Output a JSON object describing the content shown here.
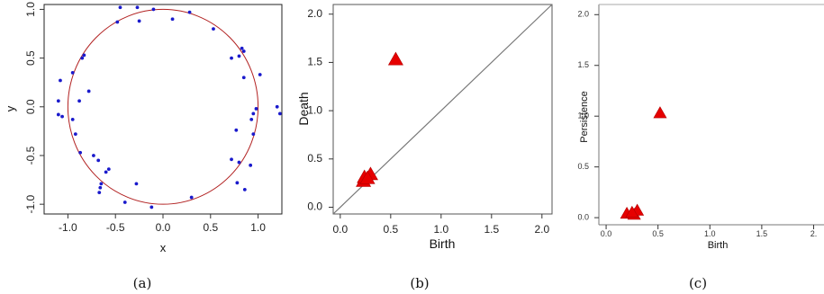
{
  "chart_data": [
    {
      "id": "a",
      "type": "scatter",
      "caption": "(a)",
      "xlabel": "x",
      "ylabel": "y",
      "xlim": [
        -1.25,
        1.25
      ],
      "ylim": [
        -1.1,
        1.05
      ],
      "xticks": [
        "-1.0",
        "-0.5",
        "0.0",
        "0.5",
        "1.0"
      ],
      "xtick_values": [
        -1.0,
        -0.5,
        0.0,
        0.5,
        1.0
      ],
      "yticks": [
        "-1.0",
        "-0.5",
        "0.0",
        "0.5",
        "1.0"
      ],
      "ytick_values": [
        -1.0,
        -0.5,
        0.0,
        0.5,
        1.0
      ],
      "circle": {
        "cx": 0.0,
        "cy": 0.0,
        "r": 1.0,
        "color": "#b22222"
      },
      "point_color": "#1a1acc",
      "points": [
        [
          -0.45,
          1.02
        ],
        [
          -0.27,
          1.02
        ],
        [
          -0.1,
          1.0
        ],
        [
          0.28,
          0.97
        ],
        [
          -0.48,
          0.87
        ],
        [
          -0.25,
          0.88
        ],
        [
          0.1,
          0.9
        ],
        [
          0.53,
          0.8
        ],
        [
          0.72,
          0.5
        ],
        [
          0.83,
          0.6
        ],
        [
          0.85,
          0.57
        ],
        [
          0.8,
          0.52
        ],
        [
          1.02,
          0.33
        ],
        [
          0.85,
          0.3
        ],
        [
          -1.08,
          0.27
        ],
        [
          -0.95,
          0.35
        ],
        [
          -0.85,
          0.5
        ],
        [
          -0.83,
          0.53
        ],
        [
          -0.78,
          0.16
        ],
        [
          -1.1,
          0.06
        ],
        [
          -0.88,
          0.06
        ],
        [
          1.2,
          0.0
        ],
        [
          1.23,
          -0.07
        ],
        [
          0.98,
          -0.02
        ],
        [
          0.95,
          -0.07
        ],
        [
          0.93,
          -0.13
        ],
        [
          -1.1,
          -0.08
        ],
        [
          -1.06,
          -0.1
        ],
        [
          -0.95,
          -0.13
        ],
        [
          -0.92,
          -0.28
        ],
        [
          0.77,
          -0.24
        ],
        [
          0.95,
          -0.28
        ],
        [
          -0.73,
          -0.5
        ],
        [
          -0.68,
          -0.55
        ],
        [
          -0.87,
          -0.47
        ],
        [
          0.72,
          -0.54
        ],
        [
          0.92,
          -0.6
        ],
        [
          0.8,
          -0.57
        ],
        [
          -0.57,
          -0.64
        ],
        [
          -0.6,
          -0.67
        ],
        [
          0.78,
          -0.78
        ],
        [
          0.86,
          -0.85
        ],
        [
          -0.65,
          -0.79
        ],
        [
          -0.66,
          -0.83
        ],
        [
          -0.67,
          -0.88
        ],
        [
          -0.28,
          -0.79
        ],
        [
          -0.4,
          -0.98
        ],
        [
          0.3,
          -0.93
        ],
        [
          -0.12,
          -1.03
        ]
      ]
    },
    {
      "id": "b",
      "type": "scatter",
      "caption": "(b)",
      "xlabel": "Birth",
      "ylabel": "Death",
      "xlim": [
        -0.07,
        2.1
      ],
      "ylim": [
        -0.07,
        2.1
      ],
      "xticks": [
        "0.0",
        "0.5",
        "1.0",
        "1.5",
        "2.0"
      ],
      "xtick_values": [
        0.0,
        0.5,
        1.0,
        1.5,
        2.0
      ],
      "yticks": [
        "0.0",
        "0.5",
        "1.0",
        "1.5",
        "2.0"
      ],
      "ytick_values": [
        0.0,
        0.5,
        1.0,
        1.5,
        2.0
      ],
      "diagonal": true,
      "marker": "triangle",
      "marker_color": "#e60000",
      "points": [
        [
          0.55,
          1.53
        ],
        [
          0.23,
          0.27
        ],
        [
          0.24,
          0.31
        ],
        [
          0.3,
          0.34
        ],
        [
          0.27,
          0.3
        ]
      ]
    },
    {
      "id": "c",
      "type": "scatter",
      "caption": "(c)",
      "xlabel": "Birth",
      "ylabel": "Persistence",
      "xlim": [
        -0.07,
        2.1
      ],
      "ylim": [
        -0.07,
        2.1
      ],
      "xticks": [
        "0.0",
        "0.5",
        "1.0",
        "1.5",
        "2."
      ],
      "xtick_values": [
        0.0,
        0.5,
        1.0,
        1.5,
        2.0
      ],
      "yticks": [
        "0.0",
        "0.5",
        "1.0",
        "1.5",
        "2.0"
      ],
      "ytick_values": [
        0.0,
        0.5,
        1.0,
        1.5,
        2.0
      ],
      "marker": "triangle",
      "marker_color": "#e60000",
      "points": [
        [
          0.52,
          1.03
        ],
        [
          0.2,
          0.04
        ],
        [
          0.27,
          0.03
        ],
        [
          0.3,
          0.07
        ],
        [
          0.25,
          0.05
        ]
      ]
    }
  ]
}
